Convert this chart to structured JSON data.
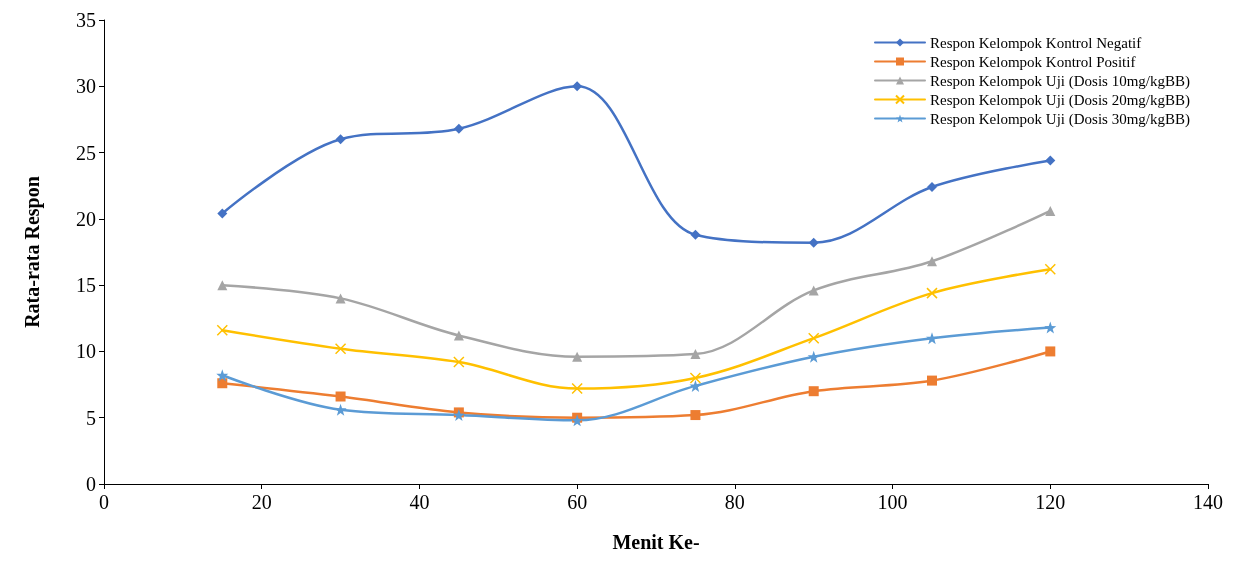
{
  "chart_data": {
    "type": "line",
    "xlabel": "Menit Ke-",
    "ylabel": "Rata-rata Respon",
    "x": [
      15,
      30,
      45,
      60,
      75,
      90,
      105,
      120
    ],
    "xlim": [
      0,
      140
    ],
    "xticks": [
      0,
      20,
      40,
      60,
      80,
      100,
      120,
      140
    ],
    "ylim": [
      0,
      35
    ],
    "yticks": [
      0,
      5,
      10,
      15,
      20,
      25,
      30,
      35
    ],
    "grid": false,
    "legend": "top right",
    "line_style": "solid",
    "series": [
      {
        "name": "Respon Kelompok Kontrol Negatif",
        "color": "#4472c4",
        "marker": "diamond",
        "values": [
          20.4,
          26.0,
          26.8,
          30.0,
          18.8,
          18.2,
          22.4,
          24.4
        ]
      },
      {
        "name": "Respon Kelompok Kontrol Positif",
        "color": "#ed7d31",
        "marker": "square",
        "values": [
          7.6,
          6.6,
          5.4,
          5.0,
          5.2,
          7.0,
          7.8,
          10.0
        ]
      },
      {
        "name": "Respon Kelompok Uji (Dosis 10mg/kgBB)",
        "color": "#a5a5a5",
        "marker": "triangle",
        "values": [
          15.0,
          14.0,
          11.2,
          9.6,
          9.8,
          14.6,
          16.8,
          20.6
        ]
      },
      {
        "name": "Respon Kelompok Uji (Dosis 20mg/kgBB)",
        "color": "#ffc000",
        "marker": "cross",
        "values": [
          11.6,
          10.2,
          9.2,
          7.2,
          8.0,
          11.0,
          14.4,
          16.2
        ]
      },
      {
        "name": "Respon Kelompok Uji (Dosis 30mg/kgBB)",
        "color": "#5b9bd5",
        "marker": "star",
        "values": [
          8.2,
          5.6,
          5.2,
          4.8,
          7.4,
          9.6,
          11.0,
          11.8
        ]
      }
    ]
  }
}
